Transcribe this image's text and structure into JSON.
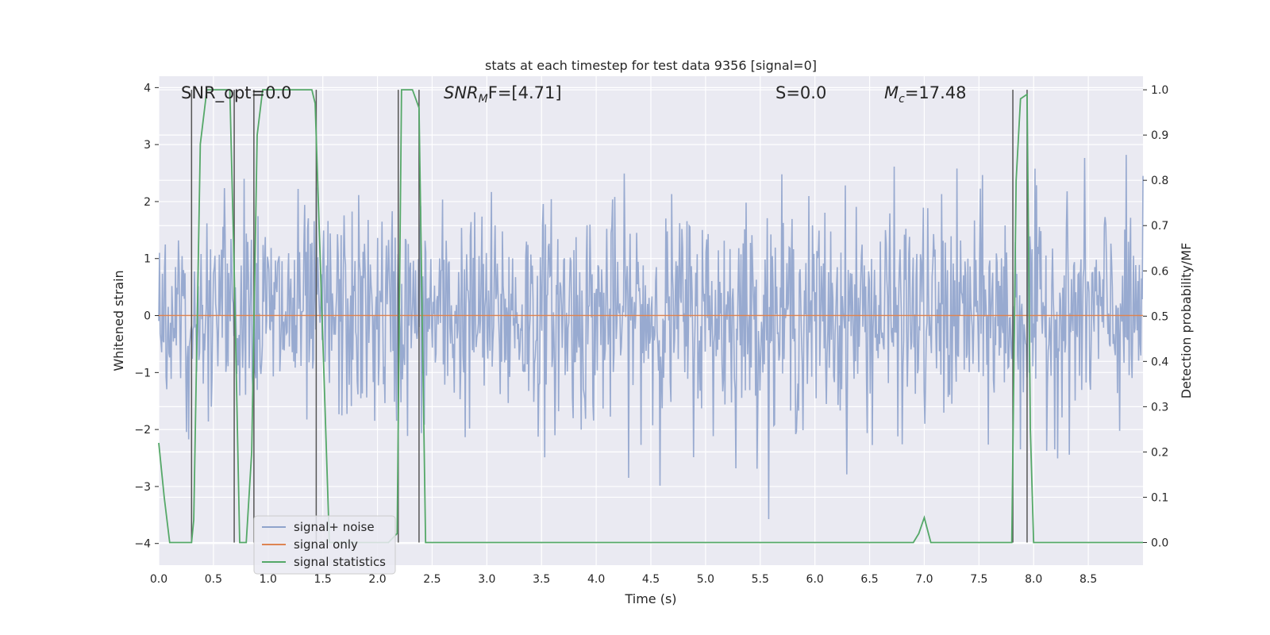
{
  "chart_data": {
    "type": "line",
    "title": "stats at each timestep for test data 9356 [signal=0]",
    "xlabel": "Time (s)",
    "ylabel_left": "Whitened strain",
    "ylabel_right": "Detection probability/MF",
    "xlim": [
      0.0,
      9.0
    ],
    "ylim_left": [
      -4.38,
      4.2
    ],
    "ylim_right": [
      -0.05,
      1.03
    ],
    "xticks": [
      "0.0",
      "0.5",
      "1.0",
      "1.5",
      "2.0",
      "2.5",
      "3.0",
      "3.5",
      "4.0",
      "4.5",
      "5.0",
      "5.5",
      "6.0",
      "6.5",
      "7.0",
      "7.5",
      "8.0",
      "8.5"
    ],
    "yticks_left": [
      "−4",
      "−3",
      "−2",
      "−1",
      "0",
      "1",
      "2",
      "3",
      "4"
    ],
    "yticks_right": [
      "0.0",
      "0.1",
      "0.2",
      "0.3",
      "0.4",
      "0.5",
      "0.6",
      "0.7",
      "0.8",
      "0.9",
      "1.0"
    ],
    "annotations": {
      "snr_opt": "SNR_opt=0.0",
      "snr_mf_base": "SNR",
      "snr_mf_sub": "M",
      "snr_mf_rest": "F=[4.71]",
      "s_label": "S=0.0",
      "mc_base": "M",
      "mc_sub": "c",
      "mc_rest": "=17.48"
    },
    "legend": {
      "location": "lower-left",
      "entries": [
        "signal+ noise",
        "signal only",
        "signal statistics"
      ]
    },
    "colors": {
      "noise": "#8fa3cc",
      "signal": "#dd8452",
      "stats": "#55a868",
      "vlines": "#555555",
      "background": "#eaeaf2",
      "grid": "#ffffff"
    },
    "series": [
      {
        "name": "signal statistics",
        "axis": "right",
        "x": [
          0.0,
          0.05,
          0.1,
          0.2,
          0.3,
          0.32,
          0.38,
          0.44,
          0.5,
          0.6,
          0.65,
          0.69,
          0.74,
          0.8,
          0.85,
          0.9,
          0.95,
          1.0,
          1.2,
          1.4,
          1.43,
          1.5,
          1.56,
          1.6,
          1.7,
          1.8,
          2.0,
          2.1,
          2.18,
          2.22,
          2.26,
          2.32,
          2.38,
          2.44,
          2.5,
          3.0,
          4.0,
          5.0,
          6.0,
          6.6,
          6.7,
          6.8,
          6.9,
          6.95,
          7.0,
          7.06,
          7.1,
          7.5,
          7.8,
          7.84,
          7.88,
          7.94,
          7.97,
          8.0,
          8.5,
          8.7,
          8.8,
          9.0
        ],
        "values": [
          0.22,
          0.1,
          0.0,
          0.0,
          0.0,
          0.05,
          0.88,
          1.0,
          1.0,
          1.0,
          1.0,
          0.6,
          0.0,
          0.0,
          0.2,
          0.9,
          1.0,
          1.0,
          1.0,
          1.0,
          0.97,
          0.45,
          0.0,
          0.0,
          0.0,
          0.0,
          0.0,
          0.0,
          0.02,
          1.0,
          1.0,
          1.0,
          0.96,
          0.0,
          0.0,
          0.0,
          0.0,
          0.0,
          0.0,
          0.0,
          0.0,
          0.0,
          0.0,
          0.02,
          0.055,
          0.0,
          0.0,
          0.0,
          0.0,
          0.8,
          0.98,
          0.99,
          0.25,
          0.0,
          0.0,
          0.0,
          0.0,
          0.0
        ]
      },
      {
        "name": "signal only",
        "axis": "left",
        "x": [
          0.0,
          9.0
        ],
        "values": [
          0.0,
          0.0
        ]
      }
    ],
    "noise": {
      "samples": 1350,
      "std": 0.95,
      "max_abs": 3.7,
      "seed": 9356
    },
    "vlines_x": [
      0.3,
      0.69,
      0.87,
      1.44,
      2.19,
      2.38,
      7.81,
      7.94
    ]
  }
}
